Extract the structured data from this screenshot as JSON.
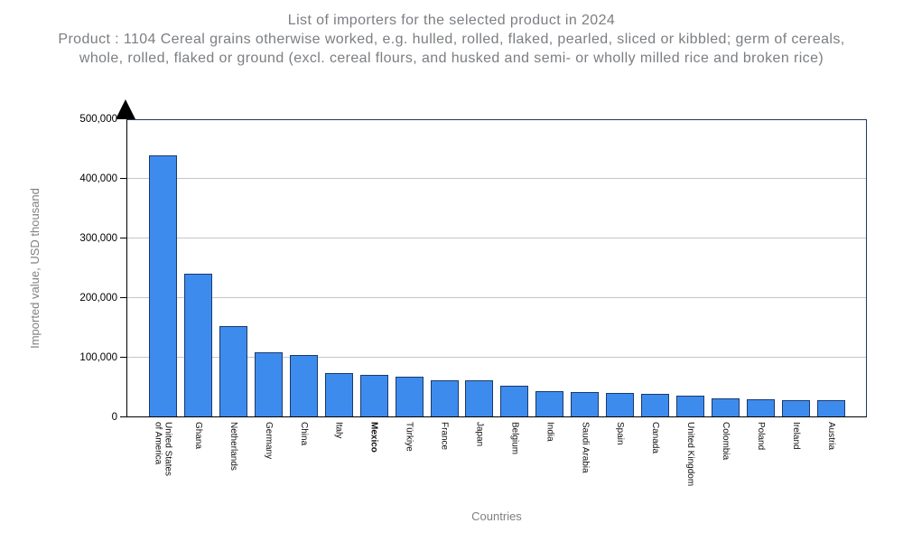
{
  "header": {
    "title": "List of importers for the selected product in 2024",
    "subtitle": "Product : 1104 Cereal grains otherwise worked, e.g. hulled, rolled, flaked, pearled, sliced or kibbled; germ of cereals, whole, rolled, flaked or ground (excl. cereal flours, and husked and semi- or wholly milled rice and broken rice)"
  },
  "chart_data": {
    "type": "bar",
    "title": "List of importers for the selected product in 2024",
    "xlabel": "Countries",
    "ylabel": "Imported value, USD thousand",
    "ylim": [
      0,
      500000
    ],
    "yticks": [
      0,
      100000,
      200000,
      300000,
      400000,
      500000
    ],
    "ytick_labels": [
      "0",
      "100,000",
      "200,000",
      "300,000",
      "400,000",
      "500,000"
    ],
    "grid": true,
    "legend": "none",
    "bar_color": "#3e8bee",
    "bar_border_color": "#1a3a6b",
    "highlighted_category": "Mexico",
    "bold_index": 6,
    "categories": [
      "United States\nof America",
      "Ghana",
      "Netherlands",
      "Germany",
      "China",
      "Italy",
      "Mexico",
      "Türkiye",
      "France",
      "Japan",
      "Belgium",
      "India",
      "Saudi Arabia",
      "Spain",
      "Canada",
      "United Kingdom",
      "Colombia",
      "Poland",
      "Ireland",
      "Austria"
    ],
    "values": [
      438000,
      240000,
      152000,
      108000,
      103000,
      72000,
      69500,
      66000,
      61000,
      60500,
      51000,
      43000,
      41500,
      40000,
      38000,
      34500,
      31000,
      29000,
      28000,
      27500
    ]
  }
}
